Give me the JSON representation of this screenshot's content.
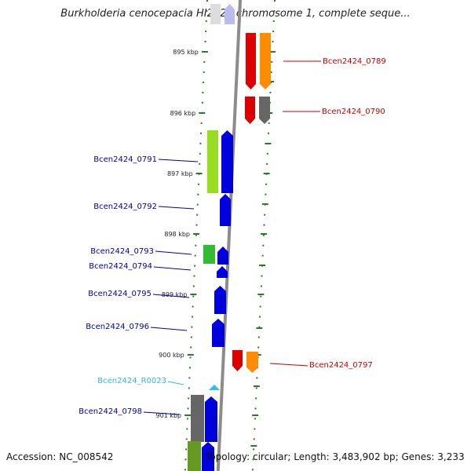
{
  "title": "Burkholderia cenocepacia HI2424 chromosome 1, complete seque...",
  "footer": {
    "accession": "Accession: NC_008542",
    "topology": "Topology: circular; Length: 3,483,902 bp; Genes: 3,233"
  },
  "colors": {
    "backbone": "#8c8c8c",
    "ruler": "#2a7a2a",
    "blue": "#0000dd",
    "red": "#dd0000",
    "orange": "#ff8c00",
    "gray": "#666666",
    "lime": "#99dd22",
    "green": "#33bb33",
    "olive": "#669922",
    "cyan": "#33bbee",
    "lightgray": "#dddddd",
    "lavender": "#bbbbee"
  },
  "kbp_labels": [
    "895 kbp",
    "896 kbp",
    "897 kbp",
    "898 kbp",
    "899 kbp",
    "900 kbp",
    "901 kbp"
  ],
  "gene_labels": [
    {
      "text": "Bcen2424_0789",
      "side": "right",
      "color": "#cc0000"
    },
    {
      "text": "Bcen2424_0790",
      "side": "right",
      "color": "#cc0000"
    },
    {
      "text": "Bcen2424_0791",
      "side": "left",
      "color": "#0000aa"
    },
    {
      "text": "Bcen2424_0792",
      "side": "left",
      "color": "#0000aa"
    },
    {
      "text": "Bcen2424_0793",
      "side": "left",
      "color": "#0000aa"
    },
    {
      "text": "Bcen2424_0794",
      "side": "left",
      "color": "#0000aa"
    },
    {
      "text": "Bcen2424_0795",
      "side": "left",
      "color": "#0000aa"
    },
    {
      "text": "Bcen2424_0796",
      "side": "left",
      "color": "#0000aa"
    },
    {
      "text": "Bcen2424_0797",
      "side": "right",
      "color": "#cc0000"
    },
    {
      "text": "Bcen2424_R0023",
      "side": "left",
      "color": "#33bbdd"
    },
    {
      "text": "Bcen2424_0798",
      "side": "left",
      "color": "#0000aa"
    }
  ]
}
